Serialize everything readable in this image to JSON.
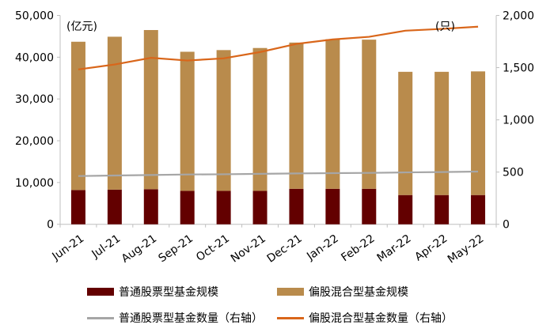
{
  "chart_data": {
    "type": "bar",
    "stacked": true,
    "categories": [
      "Jun-21",
      "Jul-21",
      "Aug-21",
      "Sep-21",
      "Oct-21",
      "Nov-21",
      "Dec-21",
      "Jan-22",
      "Feb-22",
      "Mar-22",
      "Apr-22",
      "May-22"
    ],
    "left_unit": "(亿元)",
    "right_unit": "(只)",
    "ylim": [
      0,
      50000
    ],
    "y2lim": [
      0,
      2000
    ],
    "yticks": [
      "0",
      "10,000",
      "20,000",
      "30,000",
      "40,000",
      "50,000"
    ],
    "y2ticks": [
      "0",
      "500",
      "1,000",
      "1,500",
      "2,000"
    ],
    "grid": false,
    "legend_position": "bottom",
    "series": [
      {
        "name": "普通股票型基金规模",
        "kind": "bar",
        "axis": "left",
        "color": "#630000",
        "values": [
          8200,
          8300,
          8400,
          8000,
          8000,
          8000,
          8500,
          8500,
          8500,
          7000,
          7000,
          7000
        ]
      },
      {
        "name": "偏股混合型基金规模",
        "kind": "bar",
        "axis": "left",
        "color": "#B98B4C",
        "values": [
          35500,
          36600,
          38100,
          33300,
          33700,
          34200,
          35000,
          35800,
          35700,
          29500,
          29500,
          29600
        ]
      },
      {
        "name": "普通股票型基金数量（右轴）",
        "kind": "line",
        "axis": "right",
        "color": "#A6A6A6",
        "values": [
          462,
          467,
          472,
          477,
          479,
          483,
          487,
          490,
          492,
          497,
          500,
          505
        ]
      },
      {
        "name": "偏股混合型基金数量（右轴）",
        "kind": "line",
        "axis": "right",
        "color": "#D9661A",
        "values": [
          1483,
          1530,
          1594,
          1568,
          1589,
          1649,
          1727,
          1770,
          1795,
          1854,
          1871,
          1892
        ]
      }
    ]
  }
}
